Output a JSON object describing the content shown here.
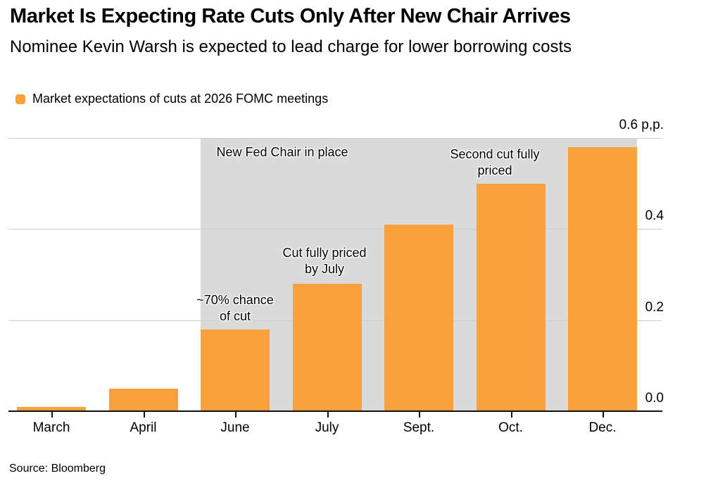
{
  "header": {
    "title": "Market Is Expecting Rate Cuts Only After New Chair Arrives",
    "subtitle": "Nominee Kevin Warsh is expected to lead charge for lower borrowing costs"
  },
  "legend": {
    "label": "Market expectations of cuts at 2026 FOMC meetings",
    "swatch_color": "#F9A13B"
  },
  "source": "Source: Bloomberg",
  "colors": {
    "bar_orange": "#F9A13B",
    "shaded_band_gray": "#DADADA",
    "gridline_gray": "#CDCDCD",
    "axis_black": "#111111",
    "background": "#FFFFFF",
    "text": "#000000"
  },
  "chart_data": {
    "type": "bar",
    "title": "Market expectations of cuts at 2026 FOMC meetings",
    "xlabel": "",
    "ylabel": "p,p.",
    "categories": [
      "March",
      "April",
      "June",
      "July",
      "Sept.",
      "Oct.",
      "Dec."
    ],
    "values": [
      0.01,
      0.05,
      0.18,
      0.28,
      0.41,
      0.5,
      0.58
    ],
    "ylim": [
      0,
      0.6
    ],
    "grid": "horizontal",
    "legend_position": "top-left",
    "yticks": [
      {
        "value": 0.0,
        "label": "0.0"
      },
      {
        "value": 0.2,
        "label": "0.2"
      },
      {
        "value": 0.4,
        "label": "0.4"
      },
      {
        "value": 0.6,
        "label": "0.6 p,p."
      }
    ],
    "shaded_region": {
      "from_category_index": 2,
      "to_category_index": 6,
      "color": "#DADADA"
    },
    "annotations": [
      {
        "lines": [
          "New Fed Chair in place"
        ],
        "x": 389,
        "y": 9
      },
      {
        "lines": [
          "Second cut fully",
          "priced"
        ],
        "x": 691,
        "y": 12
      },
      {
        "lines": [
          "Cut fully priced",
          "by July"
        ],
        "x": 449,
        "y": 152
      },
      {
        "lines": [
          "~70% chance",
          "of cut"
        ],
        "x": 322,
        "y": 219
      }
    ]
  }
}
